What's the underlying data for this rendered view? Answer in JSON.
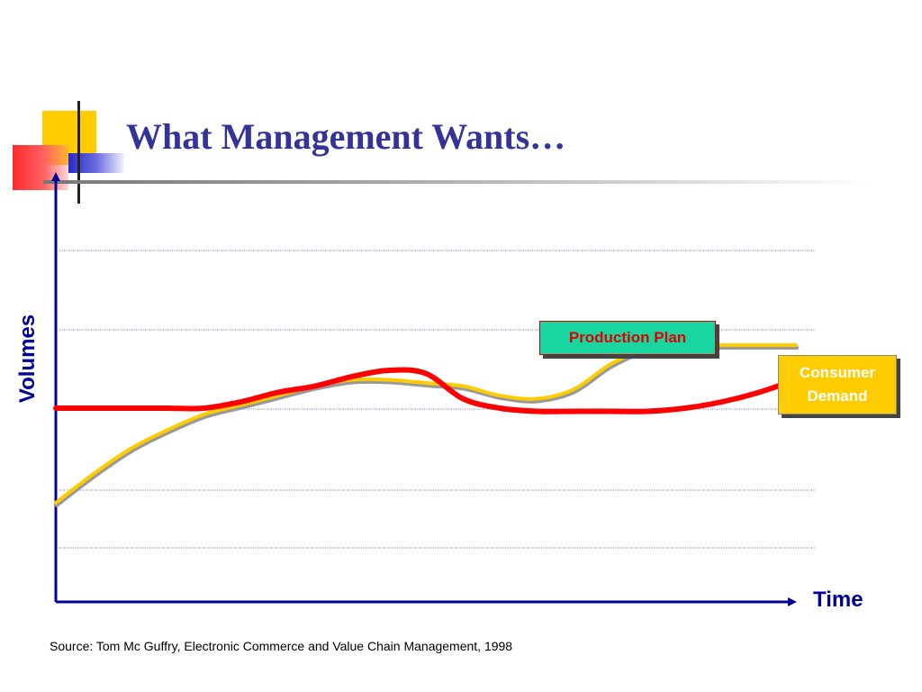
{
  "slide": {
    "title": "What Management Wants…",
    "source": "Source: Tom Mc Guffry, Electronic Commerce and Value Chain Management, 1998"
  },
  "colors": {
    "title": "#333399",
    "axis": "#000099",
    "plan_line": "#ff0000",
    "demand_line": "#ffcc00",
    "demand_shadow": "#999999",
    "plan_label_bg": "#19d6a0",
    "plan_label_text": "#e00000",
    "demand_label_bg": "#ffcc00",
    "gridline": "#9999cc"
  },
  "chart_data": {
    "type": "line",
    "xlabel": "Time",
    "ylabel": "Volumes",
    "tick_labels": "none",
    "grid": "horizontal dotted",
    "x": [
      0,
      5,
      10,
      15,
      20,
      25,
      30,
      35,
      40,
      45,
      50,
      55,
      60,
      65,
      70,
      75,
      80,
      85,
      90,
      95,
      100
    ],
    "series": [
      {
        "name": "Production Plan",
        "color": "#ff0000",
        "values": [
          50,
          50,
          50,
          50,
          50,
          51,
          52.5,
          53.5,
          55,
          56,
          55.5,
          51.5,
          50,
          49.5,
          49.5,
          49.5,
          49.5,
          50,
          51,
          52.5,
          54.5
        ]
      },
      {
        "name": "Consumer Demand",
        "color": "#ffcc00",
        "values": [
          35,
          39.5,
          43.5,
          46.5,
          49,
          50.5,
          52,
          53.5,
          54.5,
          54.5,
          54,
          53.5,
          52,
          51.5,
          53,
          57,
          59.5,
          60,
          60,
          60,
          60
        ]
      }
    ],
    "annotations": [
      {
        "text": "Production Plan",
        "points_to": "Production Plan"
      },
      {
        "text": "Consumer Demand",
        "points_to": "Consumer Demand"
      }
    ]
  }
}
